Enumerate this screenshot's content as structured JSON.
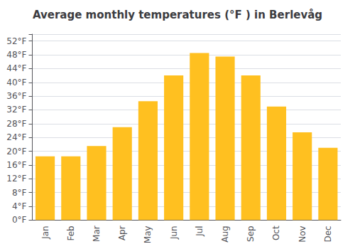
{
  "chart_data": {
    "type": "bar",
    "title": "Average monthly temperatures (°F ) in Berlevåg",
    "categories": [
      "Jan",
      "Feb",
      "Mar",
      "Apr",
      "May",
      "Jun",
      "Jul",
      "Aug",
      "Sep",
      "Oct",
      "Nov",
      "Dec"
    ],
    "values": [
      18.5,
      18.5,
      21.5,
      27,
      34.5,
      42,
      48.5,
      47.5,
      42,
      33,
      25.5,
      21
    ],
    "color": "#FFC020",
    "ylim": [
      0,
      54
    ],
    "yticks": [
      {
        "value": 0,
        "label": "0°F"
      },
      {
        "value": 4,
        "label": "4°F"
      },
      {
        "value": 8,
        "label": "8°F"
      },
      {
        "value": 12,
        "label": "12°F"
      },
      {
        "value": 16,
        "label": "16°F"
      },
      {
        "value": 20,
        "label": "20°F"
      },
      {
        "value": 24,
        "label": "24°F"
      },
      {
        "value": 28,
        "label": "28°F"
      },
      {
        "value": 32,
        "label": "32°F"
      },
      {
        "value": 36,
        "label": "36°F"
      },
      {
        "value": 40,
        "label": "40°F"
      },
      {
        "value": 44,
        "label": "44°F"
      },
      {
        "value": 48,
        "label": "48°F"
      },
      {
        "value": 52,
        "label": "52°F"
      }
    ],
    "grid": true
  }
}
